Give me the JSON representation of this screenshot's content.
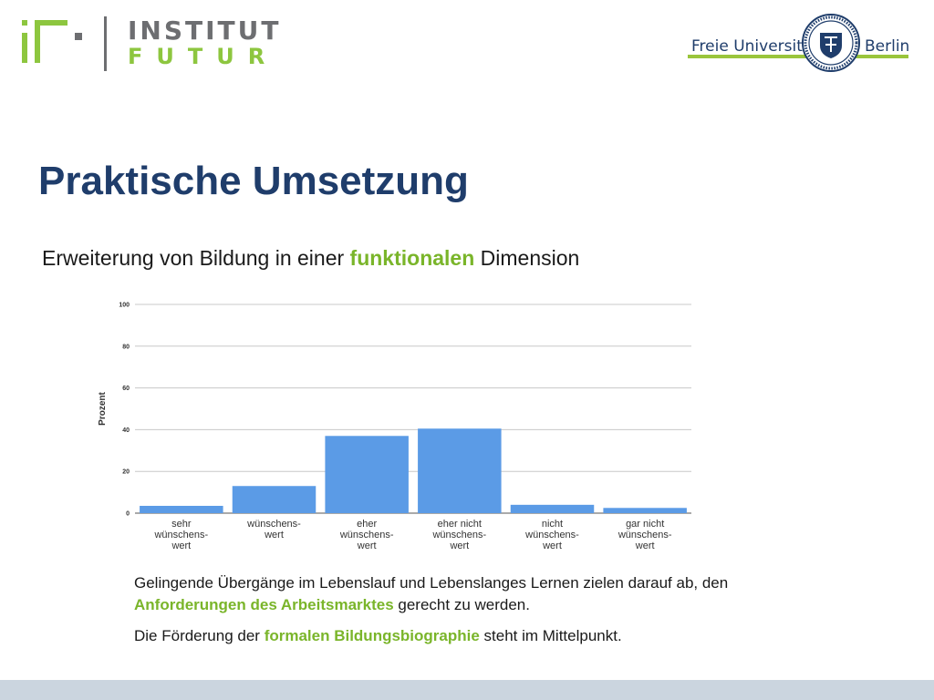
{
  "header": {
    "logo_line1": "INSTITUT",
    "logo_line2": "FUTUR",
    "fu_left": "Freie Universität",
    "fu_right": "Berlin",
    "fu_seal": "FU Berlin seal"
  },
  "slide": {
    "title": "Praktische Umsetzung",
    "subtitle_pre": "Erweiterung von Bildung in einer ",
    "subtitle_hl": "funktionalen",
    "subtitle_post": " Dimension"
  },
  "paragraphs": {
    "p1_pre": "Gelingende Übergänge im Lebenslauf und Lebenslanges Lernen zielen darauf ab, den ",
    "p1_hl": "Anforderungen des Arbeitsmarktes",
    "p1_post": " gerecht zu werden.",
    "p2_pre": "Die Förderung der ",
    "p2_hl": "formalen Bildungsbiographie",
    "p2_post": " steht im Mittelpunkt."
  },
  "colors": {
    "title": "#1f3d6b",
    "highlight": "#7ab52a",
    "bar": "#5b9be6",
    "grid": "#c8c8c8"
  },
  "chart_data": {
    "type": "bar",
    "ylabel": "Prozent",
    "xlabel": "",
    "ylim": [
      0,
      100
    ],
    "yticks": [
      0,
      20,
      40,
      60,
      80,
      100
    ],
    "grid": true,
    "categories": [
      [
        "sehr",
        "wünschens-",
        "wert"
      ],
      [
        "wünschens-",
        "wert"
      ],
      [
        "eher",
        "wünschens-",
        "wert"
      ],
      [
        "eher nicht",
        "wünschens-",
        "wert"
      ],
      [
        "nicht",
        "wünschens-",
        "wert"
      ],
      [
        "gar nicht",
        "wünschens-",
        "wert"
      ]
    ],
    "values": [
      3.5,
      13,
      37,
      40.5,
      4,
      2.5
    ]
  }
}
